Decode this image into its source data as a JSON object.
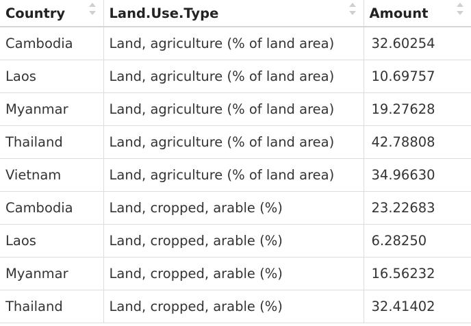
{
  "table": {
    "columns": [
      {
        "label": "Country",
        "sort_icon": "sort-arrows-icon"
      },
      {
        "label": "Land.Use.Type",
        "sort_icon": "sort-arrows-icon"
      },
      {
        "label": "Amount",
        "sort_icon": "sort-arrows-icon"
      }
    ],
    "rows": [
      {
        "country": "Cambodia",
        "type": "Land, agriculture (% of land area)",
        "amount": "32.60254"
      },
      {
        "country": "Laos",
        "type": "Land, agriculture (% of land area)",
        "amount": "10.69757"
      },
      {
        "country": "Myanmar",
        "type": "Land, agriculture (% of land area)",
        "amount": "19.27628"
      },
      {
        "country": "Thailand",
        "type": "Land, agriculture (% of land area)",
        "amount": "42.78808"
      },
      {
        "country": "Vietnam",
        "type": "Land, agriculture (% of land area)",
        "amount": "34.96630"
      },
      {
        "country": "Cambodia",
        "type": "Land, cropped, arable (%)",
        "amount": "23.22683"
      },
      {
        "country": "Laos",
        "type": "Land, cropped, arable (%)",
        "amount": "6.28250"
      },
      {
        "country": "Myanmar",
        "type": "Land, cropped, arable (%)",
        "amount": "16.56232"
      },
      {
        "country": "Thailand",
        "type": "Land, cropped, arable (%)",
        "amount": "32.41402"
      }
    ]
  },
  "colors": {
    "border": "#dcdcdc",
    "header_border": "#d6d6d6",
    "sort_icon": "#cfcfcf",
    "text": "#333333"
  }
}
